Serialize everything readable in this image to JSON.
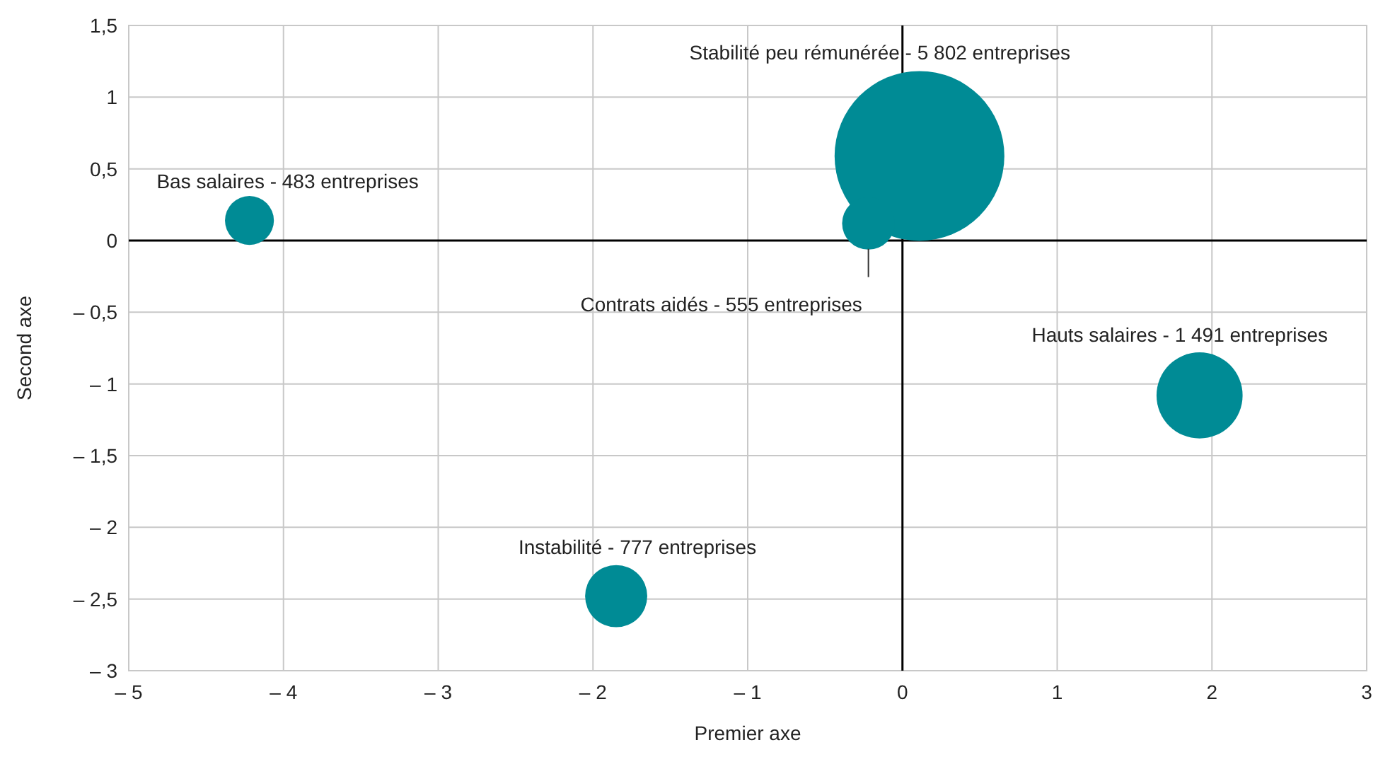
{
  "chart_data": {
    "type": "bubble",
    "xlabel": "Premier axe",
    "ylabel": "Second axe",
    "xlim": [
      -5,
      3
    ],
    "ylim": [
      -3,
      1.5
    ],
    "xticks": [
      {
        "value": -5,
        "label": "– 5"
      },
      {
        "value": -4,
        "label": "– 4"
      },
      {
        "value": -3,
        "label": "– 3"
      },
      {
        "value": -2,
        "label": "– 2"
      },
      {
        "value": -1,
        "label": "– 1"
      },
      0,
      1,
      2,
      3
    ],
    "yticks": [
      {
        "value": -3,
        "label": "– 3"
      },
      {
        "value": -2.5,
        "label": "– 2,5"
      },
      {
        "value": -2,
        "label": "– 2"
      },
      {
        "value": -1.5,
        "label": "– 1,5"
      },
      {
        "value": -1,
        "label": "– 1"
      },
      {
        "value": -0.5,
        "label": "– 0,5"
      },
      0,
      {
        "value": 0.5,
        "label": "0,5"
      },
      1,
      {
        "value": 1.5,
        "label": "1,5"
      }
    ],
    "grid": true,
    "series": [
      {
        "color": "#008b95",
        "x": [
          -4.22,
          0.11,
          -0.22,
          1.92,
          -1.85
        ],
        "values": [
          0.14,
          0.59,
          0.12,
          -1.08,
          -2.48
        ],
        "sizes": [
          0.083,
          1,
          0.096,
          0.257,
          0.134
        ]
      }
    ],
    "annotations": [
      {
        "text": "Bas salaires - 483 entreprises",
        "x": -4.22,
        "y": 0.14
      },
      "Stabilité peu rémunérée - 5 802 entreprises",
      "Contrats aidés - 555 entreprises",
      {
        "text": "Hauts salaires - 1 491 entreprises",
        "x": 1.92,
        "y": -1.08
      },
      {
        "text": "Instabilité - 777 entreprises",
        "x": -1.85,
        "y": -2.48
      }
    ]
  }
}
